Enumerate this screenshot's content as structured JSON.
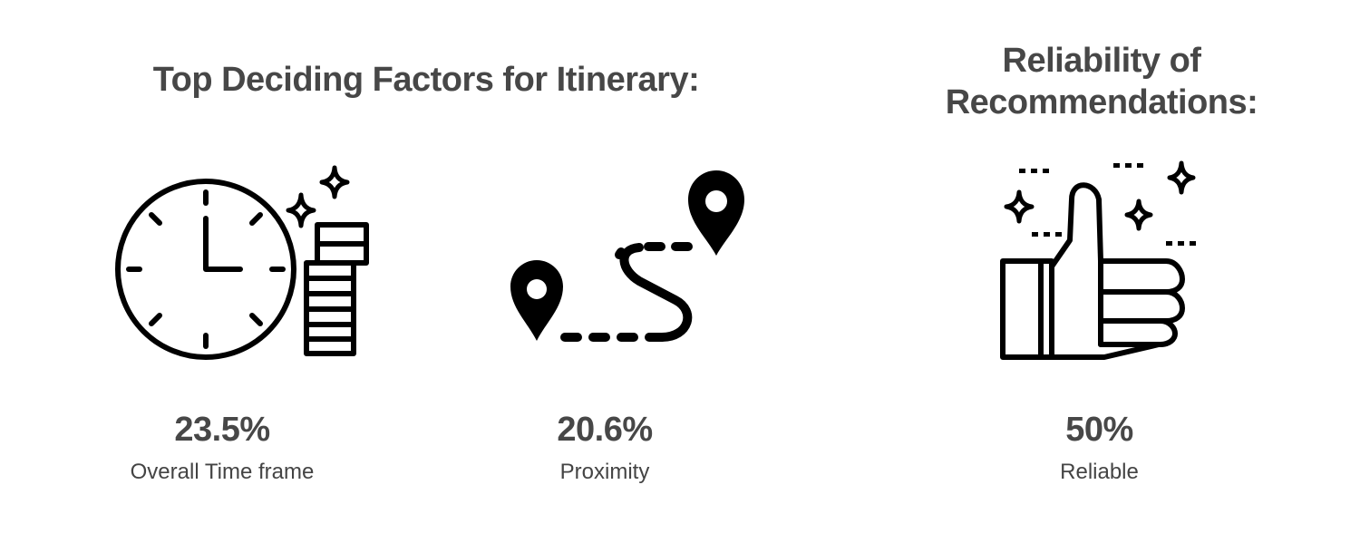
{
  "headings": {
    "factors": "Top Deciding Factors for Itinerary:",
    "reliability": "Reliability of Recommendations:"
  },
  "icons": {
    "clock": "clock-with-coin-stack-icon",
    "route": "map-route-pins-icon",
    "thumbs_up": "thumbs-up-sparkle-icon"
  },
  "stats": [
    {
      "value": "23.5%",
      "percent": 23.5,
      "label": "Overall Time frame"
    },
    {
      "value": "20.6%",
      "percent": 20.6,
      "label": "Proximity"
    },
    {
      "value": "50%",
      "percent": 50,
      "label": "Reliable"
    }
  ],
  "colors": {
    "icon": "#000000",
    "text": "#474747",
    "background": "#ffffff"
  }
}
